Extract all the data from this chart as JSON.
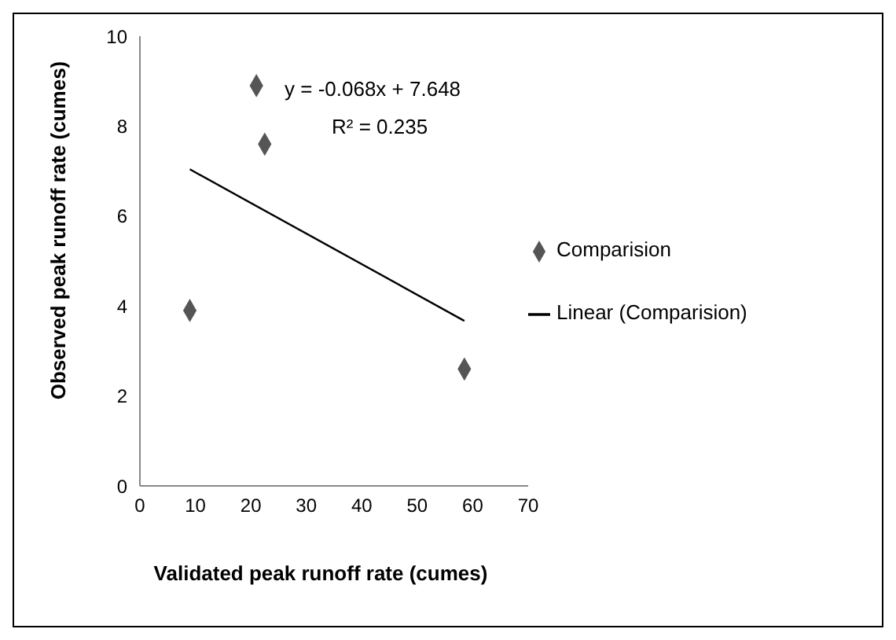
{
  "chart_data": {
    "type": "scatter",
    "xlabel": "Validated peak runoff rate (cumes)",
    "ylabel": "Observed peak runoff rate (cumes)",
    "xlim": [
      0,
      70
    ],
    "xticks": [
      0,
      10,
      20,
      30,
      40,
      50,
      60,
      70
    ],
    "ylim": [
      0,
      10
    ],
    "yticks": [
      0,
      2,
      4,
      6,
      8,
      10
    ],
    "grid": false,
    "legend": "right",
    "marker": "diamond",
    "annotations": [
      "y = -0.068x + 7.648",
      "R² = 0.235"
    ],
    "series": [
      {
        "name": "Comparision",
        "color": "#555555",
        "x": [
          9,
          21,
          22.5,
          58.5
        ],
        "values": [
          3.9,
          8.9,
          7.6,
          2.6
        ]
      },
      {
        "name": "Linear (Comparision)",
        "type": "line",
        "color": "#000000",
        "line_style": "solid",
        "marker": "none",
        "x": [
          9,
          58.5
        ],
        "values": [
          7.04,
          3.67
        ]
      }
    ]
  }
}
